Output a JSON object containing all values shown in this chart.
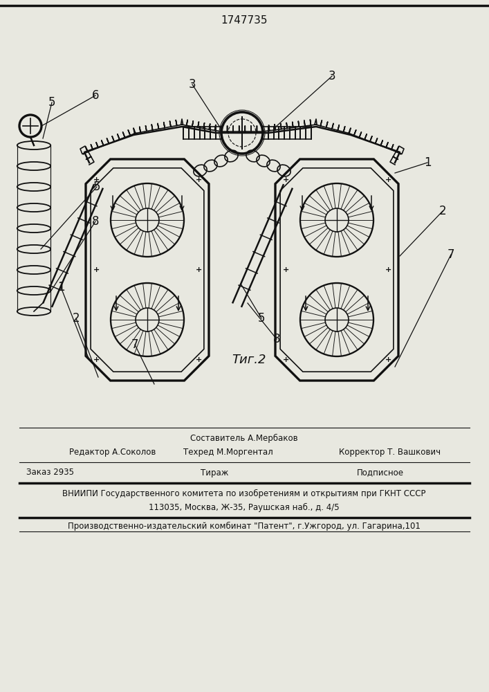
{
  "patent_number": "1747735",
  "figure_label": "Τиг.2",
  "bg_color": "#e8e8e0",
  "lc": "#111111",
  "footer_sestavitel": "Составитель А.Мербаков",
  "footer_redaktor": "Редактор А.Соколов",
  "footer_tehred": "Техред М.Моргентал",
  "footer_korrektor": "Корректор Т. Вашкович",
  "footer_zakaz": "Заказ 2935",
  "footer_tirazh": "Тираж",
  "footer_podpisnoe": "Подписное",
  "footer_vniip": "ВНИИПИ Государственного комитета по изобретениям и открытиям при ГКНТ СССР",
  "footer_addr": "113035, Москва, Ж-35, Раушская наб., д. 4/5",
  "footer_patent": "Производственно-издательский комбинат \"Патент\", г.Ужгород, ул. Гагарина,101"
}
